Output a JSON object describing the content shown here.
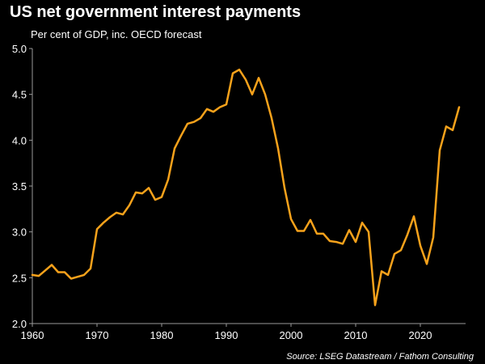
{
  "chart_data": {
    "type": "line",
    "title": "US net government interest payments",
    "subtitle": "Per cent of GDP, inc. OECD forecast",
    "source": "Source: LSEG Datastream / Fathom Consulting",
    "xlabel": "",
    "ylabel": "",
    "xlim": [
      1960,
      2027
    ],
    "ylim": [
      2.0,
      5.0
    ],
    "x_ticks": [
      "1960",
      "1970",
      "1980",
      "1990",
      "2000",
      "2010",
      "2020"
    ],
    "y_ticks": [
      "5.0",
      "4.5",
      "4.0",
      "3.5",
      "3.0",
      "2.5",
      "2.0"
    ],
    "grid": false,
    "legend": "none",
    "line_color": "#F7A21B",
    "x": [
      1960,
      1961,
      1962,
      1963,
      1964,
      1965,
      1966,
      1967,
      1968,
      1969,
      1970,
      1971,
      1972,
      1973,
      1974,
      1975,
      1976,
      1977,
      1978,
      1979,
      1980,
      1981,
      1982,
      1983,
      1984,
      1985,
      1986,
      1987,
      1988,
      1989,
      1990,
      1991,
      1992,
      1993,
      1994,
      1995,
      1996,
      1997,
      1998,
      1999,
      2000,
      2001,
      2002,
      2003,
      2004,
      2005,
      2006,
      2007,
      2008,
      2009,
      2010,
      2011,
      2012,
      2013,
      2014,
      2015,
      2016,
      2017,
      2018,
      2019,
      2020,
      2021,
      2022,
      2023,
      2024,
      2025,
      2026
    ],
    "values": [
      2.53,
      2.52,
      2.58,
      2.64,
      2.56,
      2.56,
      2.49,
      2.51,
      2.53,
      2.6,
      3.03,
      3.1,
      3.16,
      3.21,
      3.19,
      3.29,
      3.43,
      3.42,
      3.48,
      3.35,
      3.38,
      3.57,
      3.91,
      4.05,
      4.18,
      4.2,
      4.24,
      4.34,
      4.31,
      4.36,
      4.39,
      4.73,
      4.77,
      4.66,
      4.5,
      4.68,
      4.5,
      4.24,
      3.91,
      3.48,
      3.14,
      3.01,
      3.01,
      3.13,
      2.98,
      2.98,
      2.9,
      2.89,
      2.87,
      3.02,
      2.89,
      3.1,
      3.0,
      2.2,
      2.57,
      2.53,
      2.76,
      2.8,
      2.97,
      3.17,
      2.85,
      2.65,
      2.94,
      3.89,
      4.15,
      4.11,
      4.36
    ]
  }
}
